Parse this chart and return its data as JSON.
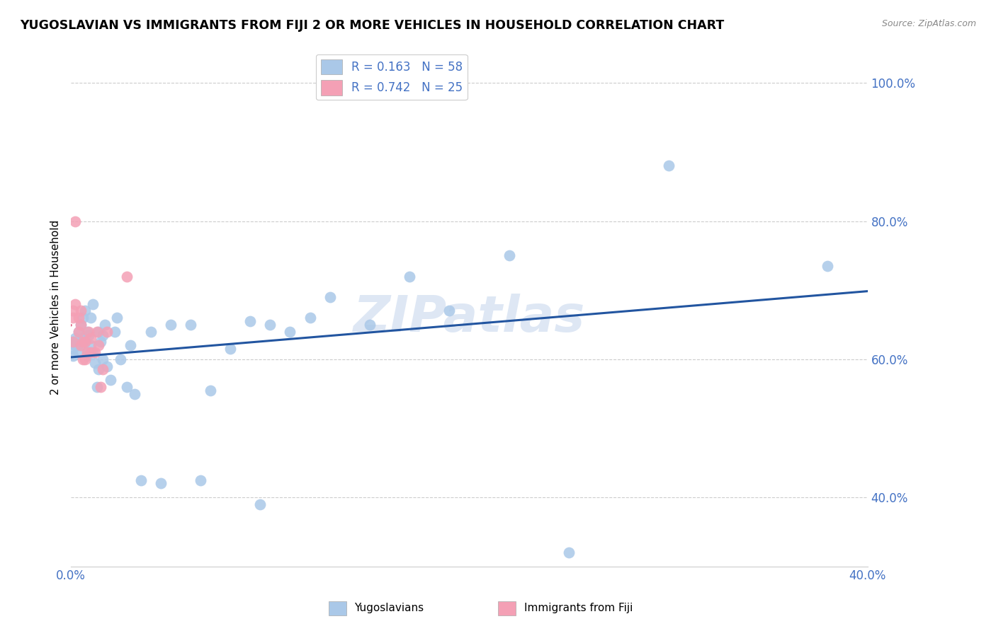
{
  "title": "YUGOSLAVIAN VS IMMIGRANTS FROM FIJI 2 OR MORE VEHICLES IN HOUSEHOLD CORRELATION CHART",
  "source": "Source: ZipAtlas.com",
  "ylabel": "2 or more Vehicles in Household",
  "watermark": "ZIPatlas",
  "xlim": [
    0.0,
    0.4
  ],
  "ylim": [
    0.3,
    1.05
  ],
  "yticks": [
    0.4,
    0.6,
    0.8,
    1.0
  ],
  "ytick_labels": [
    "40.0%",
    "60.0%",
    "80.0%",
    "100.0%"
  ],
  "xticks": [
    0.0,
    0.1,
    0.2,
    0.3,
    0.4
  ],
  "xtick_labels": [
    "0.0%",
    "",
    "",
    "",
    "40.0%"
  ],
  "grid_color": "#cccccc",
  "background_color": "#ffffff",
  "scatter_blue_color": "#aac8e8",
  "scatter_pink_color": "#f4a0b5",
  "line_blue_color": "#2255a0",
  "line_pink_color": "#e06080",
  "R_blue": 0.163,
  "N_blue": 58,
  "R_pink": 0.742,
  "N_pink": 25,
  "legend_label_blue": "Yugoslavians",
  "legend_label_pink": "Immigrants from Fiji",
  "blue_x": [
    0.001,
    0.001,
    0.001,
    0.002,
    0.002,
    0.004,
    0.004,
    0.005,
    0.005,
    0.006,
    0.006,
    0.007,
    0.007,
    0.008,
    0.008,
    0.009,
    0.009,
    0.01,
    0.01,
    0.011,
    0.011,
    0.012,
    0.013,
    0.014,
    0.014,
    0.015,
    0.016,
    0.016,
    0.017,
    0.018,
    0.02,
    0.022,
    0.023,
    0.025,
    0.028,
    0.03,
    0.032,
    0.035,
    0.04,
    0.045,
    0.05,
    0.06,
    0.065,
    0.07,
    0.08,
    0.09,
    0.095,
    0.1,
    0.11,
    0.12,
    0.13,
    0.15,
    0.17,
    0.19,
    0.22,
    0.25,
    0.3,
    0.38
  ],
  "blue_y": [
    0.625,
    0.615,
    0.605,
    0.63,
    0.62,
    0.64,
    0.61,
    0.65,
    0.62,
    0.66,
    0.63,
    0.67,
    0.625,
    0.64,
    0.605,
    0.61,
    0.635,
    0.62,
    0.66,
    0.68,
    0.61,
    0.595,
    0.56,
    0.64,
    0.585,
    0.625,
    0.6,
    0.635,
    0.65,
    0.59,
    0.57,
    0.64,
    0.66,
    0.6,
    0.56,
    0.62,
    0.55,
    0.425,
    0.64,
    0.42,
    0.65,
    0.65,
    0.425,
    0.555,
    0.615,
    0.655,
    0.39,
    0.65,
    0.64,
    0.66,
    0.69,
    0.65,
    0.72,
    0.67,
    0.75,
    0.32,
    0.88,
    0.735
  ],
  "pink_x": [
    0.001,
    0.001,
    0.001,
    0.002,
    0.002,
    0.004,
    0.004,
    0.005,
    0.005,
    0.005,
    0.006,
    0.006,
    0.007,
    0.007,
    0.008,
    0.009,
    0.01,
    0.01,
    0.012,
    0.013,
    0.014,
    0.015,
    0.016,
    0.018,
    0.028
  ],
  "pink_y": [
    0.625,
    0.66,
    0.67,
    0.68,
    0.8,
    0.64,
    0.66,
    0.62,
    0.65,
    0.67,
    0.6,
    0.625,
    0.6,
    0.625,
    0.61,
    0.64,
    0.61,
    0.63,
    0.61,
    0.64,
    0.62,
    0.56,
    0.585,
    0.64,
    0.72
  ]
}
